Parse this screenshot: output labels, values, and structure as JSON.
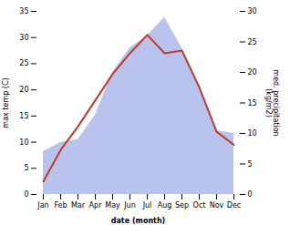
{
  "chart_data": {
    "type": "line",
    "categories": [
      "Jan",
      "Feb",
      "Mar",
      "Apr",
      "May",
      "Jun",
      "Jul",
      "Aug",
      "Sep",
      "Oct",
      "Nov",
      "Dec"
    ],
    "xlabel": "date (month)",
    "ylabel": "max temp (C)",
    "y2label": "med. precipitation\n(kg/m2)",
    "series": [
      {
        "type": "area",
        "axis": "y2",
        "color": "#b8c4ee",
        "values": [
          7.0,
          8.5,
          9.0,
          13.0,
          20.0,
          24.0,
          26.0,
          29.0,
          24.0,
          17.5,
          10.5,
          10.0
        ]
      },
      {
        "type": "line",
        "color": "#c0392b",
        "values": [
          2.5,
          8.5,
          13.0,
          18.0,
          23.0,
          27.0,
          30.5,
          27.0,
          27.5,
          20.5,
          12.0,
          9.5
        ]
      }
    ],
    "ylim": [
      0,
      35
    ],
    "yticks": [
      0,
      5,
      10,
      15,
      20,
      25,
      30,
      35
    ],
    "y2lim": [
      0,
      30
    ],
    "y2ticks": [
      0,
      5,
      10,
      15,
      20,
      25,
      30
    ]
  }
}
